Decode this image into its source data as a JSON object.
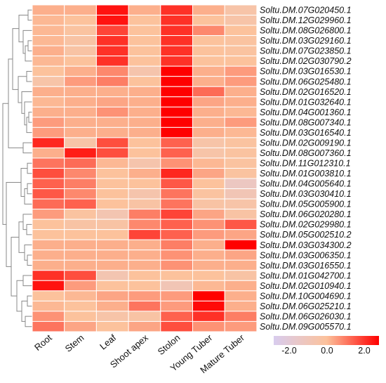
{
  "chart_data": {
    "type": "heatmap",
    "title": "",
    "xlabel": "",
    "ylabel": "",
    "columns": [
      "Root",
      "Stem",
      "Leaf",
      "Shoot apex",
      "Stolon",
      "Young Tuber",
      "Mature Tuber"
    ],
    "rows": [
      "Soltu.DM.07G020450.1",
      "Soltu.DM.12G029960.1",
      "Soltu.DM.08G026800.1",
      "Soltu.DM.03G029160.1",
      "Soltu.DM.07G023850.1",
      "Soltu.DM.02G030790.2",
      "Soltu.DM.03G016530.1",
      "Soltu.DM.06G025480.1",
      "Soltu.DM.02G016520.1",
      "Soltu.DM.01G032640.1",
      "Soltu.DM.04G001360.1",
      "Soltu.DM.08G007340.1",
      "Soltu.DM.03G016540.1",
      "Soltu.DM.02G009190.1",
      "Soltu.DM.08G007360.1",
      "Soltu.DM.11G012310.1",
      "Soltu.DM.01G003810.1",
      "Soltu.DM.04G005640.1",
      "Soltu.DM.03G030410.1",
      "Soltu.DM.05G005900.1",
      "Soltu.DM.06G020280.1",
      "Soltu.DM.02G029980.1",
      "Soltu.DM.05G002510.2",
      "Soltu.DM.03G034300.2",
      "Soltu.DM.03G006350.1",
      "Soltu.DM.03G016550.1",
      "Soltu.DM.01G042700.1",
      "Soltu.DM.02G010940.1",
      "Soltu.DM.10G004690.1",
      "Soltu.DM.06G025210.1",
      "Soltu.DM.06G026030.1",
      "Soltu.DM.09G005570.1"
    ],
    "values": [
      [
        0.2,
        0.2,
        1.8,
        0.2,
        1.5,
        0.2,
        -0.3
      ],
      [
        0.1,
        0.0,
        1.8,
        0.0,
        1.5,
        0.0,
        -0.3
      ],
      [
        0.1,
        -0.1,
        1.3,
        0.0,
        1.5,
        0.6,
        0.0
      ],
      [
        0.1,
        -0.2,
        1.5,
        0.0,
        1.5,
        0.0,
        -0.1
      ],
      [
        0.2,
        -0.2,
        1.5,
        0.0,
        1.5,
        0.0,
        -0.1
      ],
      [
        0.1,
        0.0,
        1.5,
        0.0,
        1.5,
        0.0,
        0.0
      ],
      [
        0.0,
        0.2,
        0.6,
        -0.4,
        2.0,
        0.2,
        0.4
      ],
      [
        -0.3,
        0.4,
        0.7,
        0.0,
        2.0,
        0.2,
        0.4
      ],
      [
        0.2,
        0.2,
        0.2,
        0.2,
        2.0,
        0.9,
        0.2
      ],
      [
        0.1,
        0.2,
        0.3,
        0.2,
        2.0,
        0.3,
        0.2
      ],
      [
        0.2,
        0.2,
        0.5,
        0.2,
        2.0,
        0.2,
        0.1
      ],
      [
        0.4,
        0.2,
        0.2,
        0.2,
        2.0,
        0.2,
        0.4
      ],
      [
        0.4,
        0.2,
        0.2,
        0.2,
        2.0,
        0.2,
        0.1
      ],
      [
        1.6,
        -0.3,
        1.2,
        0.0,
        1.0,
        -0.3,
        -0.1
      ],
      [
        0.2,
        1.7,
        1.2,
        0.0,
        1.0,
        -0.3,
        -0.1
      ],
      [
        0.8,
        0.9,
        0.1,
        -0.4,
        0.5,
        0.1,
        -0.1
      ],
      [
        1.2,
        0.6,
        0.0,
        0.2,
        1.6,
        0.3,
        -0.1
      ],
      [
        1.0,
        0.7,
        0.0,
        0.0,
        1.1,
        0.0,
        -0.9
      ],
      [
        1.1,
        0.6,
        0.0,
        -0.4,
        0.8,
        -0.1,
        -0.6
      ],
      [
        0.9,
        1.0,
        0.0,
        -0.2,
        0.8,
        -0.2,
        -0.3
      ],
      [
        0.4,
        -0.1,
        -0.5,
        0.7,
        1.3,
        0.3,
        -0.2
      ],
      [
        0.0,
        -0.2,
        -0.2,
        0.6,
        1.0,
        0.5,
        1.1
      ],
      [
        0.0,
        0.0,
        0.0,
        1.3,
        1.0,
        0.4,
        0.3
      ],
      [
        0.2,
        0.2,
        0.2,
        0.2,
        0.7,
        0.2,
        2.0
      ],
      [
        0.2,
        0.2,
        0.2,
        0.2,
        0.5,
        0.2,
        0.3
      ],
      [
        0.2,
        0.2,
        0.2,
        0.2,
        0.5,
        0.2,
        0.2
      ],
      [
        1.5,
        1.2,
        -0.5,
        0.0,
        0.0,
        0.0,
        -0.2
      ],
      [
        1.8,
        0.4,
        0.0,
        0.0,
        -0.6,
        0.1,
        0.2
      ],
      [
        0.0,
        0.1,
        0.3,
        0.4,
        0.4,
        2.0,
        0.2
      ],
      [
        0.1,
        0.0,
        0.2,
        0.8,
        0.4,
        1.9,
        0.2
      ],
      [
        0.5,
        0.0,
        -0.3,
        -0.2,
        1.0,
        1.5,
        0.7
      ],
      [
        0.8,
        0.3,
        0.0,
        0.3,
        1.2,
        0.5,
        0.4
      ]
    ],
    "color_scale": {
      "min": -2.0,
      "mid": 0.0,
      "max": 2.0,
      "low_color": "#d8ccee",
      "mid_color": "#fcc29c",
      "high_color": "#ff0000",
      "ticks": [
        "-2.0",
        "0.0",
        "2.0"
      ]
    },
    "row_dendrogram": true,
    "legend_position": "bottom-right"
  }
}
